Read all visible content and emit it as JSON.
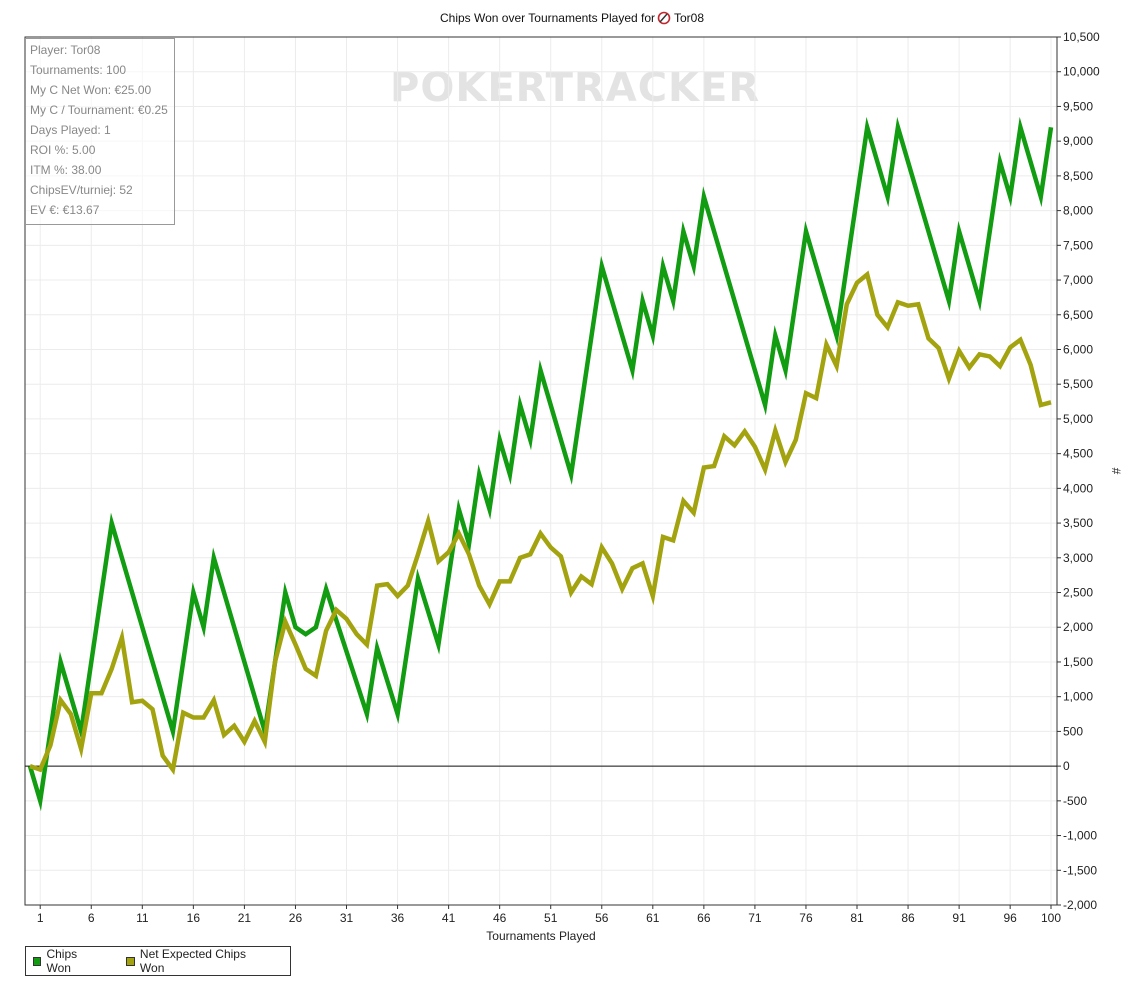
{
  "chart_data": {
    "type": "line",
    "title": "Chips Won over Tournaments Played for",
    "player_name": "Tor08",
    "watermark": "POKERTRACKER",
    "xlabel": "Tournaments Played",
    "ylabel": "#",
    "xlim": [
      1,
      100
    ],
    "ylim": [
      -2000,
      10500
    ],
    "x_ticks": [
      1,
      6,
      11,
      16,
      21,
      26,
      31,
      36,
      41,
      46,
      51,
      56,
      61,
      66,
      71,
      76,
      81,
      86,
      91,
      96,
      100
    ],
    "y_ticks": [
      {
        "value": 10500,
        "label": "10,500"
      },
      {
        "value": 10000,
        "label": "10,000"
      },
      {
        "value": 9500,
        "label": "9,500"
      },
      {
        "value": 9000,
        "label": "9,000"
      },
      {
        "value": 8500,
        "label": "8,500"
      },
      {
        "value": 8000,
        "label": "8,000"
      },
      {
        "value": 7500,
        "label": "7,500"
      },
      {
        "value": 7000,
        "label": "7,000"
      },
      {
        "value": 6500,
        "label": "6,500"
      },
      {
        "value": 6000,
        "label": "6,000"
      },
      {
        "value": 5500,
        "label": "5,500"
      },
      {
        "value": 5000,
        "label": "5,000"
      },
      {
        "value": 4500,
        "label": "4,500"
      },
      {
        "value": 4000,
        "label": "4,000"
      },
      {
        "value": 3500,
        "label": "3,500"
      },
      {
        "value": 3000,
        "label": "3,000"
      },
      {
        "value": 2500,
        "label": "2,500"
      },
      {
        "value": 2000,
        "label": "2,000"
      },
      {
        "value": 1500,
        "label": "1,500"
      },
      {
        "value": 1000,
        "label": "1,000"
      },
      {
        "value": 500,
        "label": "500"
      },
      {
        "value": 0,
        "label": "0"
      },
      {
        "value": -500,
        "label": "-500"
      },
      {
        "value": -1000,
        "label": "-1,000"
      },
      {
        "value": -1500,
        "label": "-1,500"
      },
      {
        "value": -2000,
        "label": "-2,000"
      }
    ],
    "grid": true,
    "legend_position": "bottom-left",
    "series": [
      {
        "name": "Chips Won",
        "color": "#119c11",
        "points": [
          [
            0,
            0
          ],
          [
            1,
            -500
          ],
          [
            3,
            1500
          ],
          [
            5,
            500
          ],
          [
            8,
            3500
          ],
          [
            14,
            500
          ],
          [
            16,
            2500
          ],
          [
            17,
            2000
          ],
          [
            18,
            3000
          ],
          [
            23,
            500
          ],
          [
            25,
            2500
          ],
          [
            26,
            2000
          ],
          [
            27,
            1900
          ],
          [
            28,
            2000
          ],
          [
            29,
            2550
          ],
          [
            33,
            750
          ],
          [
            34,
            1700
          ],
          [
            36,
            750
          ],
          [
            38,
            2700
          ],
          [
            40,
            1750
          ],
          [
            42,
            3700
          ],
          [
            43,
            3200
          ],
          [
            44,
            4200
          ],
          [
            45,
            3700
          ],
          [
            46,
            4700
          ],
          [
            47,
            4200
          ],
          [
            48,
            5200
          ],
          [
            49,
            4700
          ],
          [
            50,
            5700
          ],
          [
            53,
            4200
          ],
          [
            56,
            7200
          ],
          [
            59,
            5700
          ],
          [
            60,
            6700
          ],
          [
            61,
            6200
          ],
          [
            62,
            7200
          ],
          [
            63,
            6700
          ],
          [
            64,
            7700
          ],
          [
            65,
            7200
          ],
          [
            66,
            8200
          ],
          [
            72,
            5200
          ],
          [
            73,
            6200
          ],
          [
            74,
            5700
          ],
          [
            76,
            7700
          ],
          [
            79,
            6200
          ],
          [
            82,
            9200
          ],
          [
            84,
            8200
          ],
          [
            85,
            9200
          ],
          [
            90,
            6700
          ],
          [
            91,
            7700
          ],
          [
            93,
            6700
          ],
          [
            95,
            8700
          ],
          [
            96,
            8200
          ],
          [
            97,
            9200
          ],
          [
            99,
            8200
          ],
          [
            100,
            9200
          ]
        ]
      },
      {
        "name": "Net Expected Chips Won",
        "color": "#a3a30f",
        "points": [
          [
            0,
            0
          ],
          [
            1,
            -50
          ],
          [
            2,
            300
          ],
          [
            3,
            950
          ],
          [
            4,
            750
          ],
          [
            5,
            250
          ],
          [
            6,
            1050
          ],
          [
            7,
            1050
          ],
          [
            8,
            1400
          ],
          [
            9,
            1850
          ],
          [
            10,
            920
          ],
          [
            11,
            940
          ],
          [
            12,
            820
          ],
          [
            13,
            150
          ],
          [
            14,
            -50
          ],
          [
            15,
            770
          ],
          [
            16,
            700
          ],
          [
            17,
            700
          ],
          [
            18,
            950
          ],
          [
            19,
            450
          ],
          [
            20,
            580
          ],
          [
            21,
            350
          ],
          [
            22,
            650
          ],
          [
            23,
            350
          ],
          [
            24,
            1500
          ],
          [
            25,
            2080
          ],
          [
            26,
            1750
          ],
          [
            27,
            1400
          ],
          [
            28,
            1300
          ],
          [
            29,
            1950
          ],
          [
            30,
            2250
          ],
          [
            31,
            2120
          ],
          [
            32,
            1900
          ],
          [
            33,
            1750
          ],
          [
            34,
            2600
          ],
          [
            35,
            2620
          ],
          [
            36,
            2450
          ],
          [
            37,
            2600
          ],
          [
            38,
            3050
          ],
          [
            39,
            3530
          ],
          [
            40,
            2950
          ],
          [
            41,
            3080
          ],
          [
            42,
            3350
          ],
          [
            43,
            3050
          ],
          [
            44,
            2600
          ],
          [
            45,
            2330
          ],
          [
            46,
            2660
          ],
          [
            47,
            2660
          ],
          [
            48,
            3000
          ],
          [
            49,
            3050
          ],
          [
            50,
            3350
          ],
          [
            51,
            3150
          ],
          [
            52,
            3020
          ],
          [
            53,
            2500
          ],
          [
            54,
            2730
          ],
          [
            55,
            2620
          ],
          [
            56,
            3150
          ],
          [
            57,
            2920
          ],
          [
            58,
            2550
          ],
          [
            59,
            2850
          ],
          [
            60,
            2920
          ],
          [
            61,
            2450
          ],
          [
            62,
            3300
          ],
          [
            63,
            3250
          ],
          [
            64,
            3820
          ],
          [
            65,
            3650
          ],
          [
            66,
            4300
          ],
          [
            67,
            4320
          ],
          [
            68,
            4750
          ],
          [
            69,
            4620
          ],
          [
            70,
            4820
          ],
          [
            71,
            4600
          ],
          [
            72,
            4270
          ],
          [
            73,
            4830
          ],
          [
            74,
            4380
          ],
          [
            75,
            4700
          ],
          [
            76,
            5370
          ],
          [
            77,
            5300
          ],
          [
            78,
            6070
          ],
          [
            79,
            5760
          ],
          [
            80,
            6650
          ],
          [
            81,
            6960
          ],
          [
            82,
            7080
          ],
          [
            83,
            6500
          ],
          [
            84,
            6320
          ],
          [
            85,
            6680
          ],
          [
            86,
            6630
          ],
          [
            87,
            6650
          ],
          [
            88,
            6160
          ],
          [
            89,
            6020
          ],
          [
            90,
            5580
          ],
          [
            91,
            5980
          ],
          [
            92,
            5740
          ],
          [
            93,
            5930
          ],
          [
            94,
            5900
          ],
          [
            95,
            5760
          ],
          [
            96,
            6030
          ],
          [
            97,
            6140
          ],
          [
            98,
            5780
          ],
          [
            99,
            5200
          ],
          [
            100,
            5240
          ]
        ]
      }
    ]
  },
  "stats": [
    {
      "label": "Player: Tor08"
    },
    {
      "label": "Tournaments: 100"
    },
    {
      "label": "My C Net Won: €25.00"
    },
    {
      "label": "My C / Tournament: €0.25"
    },
    {
      "label": "Days Played: 1"
    },
    {
      "label": "ROI %: 5.00"
    },
    {
      "label": "ITM %: 38.00"
    },
    {
      "label": "ChipsEV/turniej: 52"
    },
    {
      "label": "EV €: €13.67"
    }
  ],
  "legend": [
    {
      "label": "Chips Won",
      "color": "#119c11"
    },
    {
      "label": "Net Expected Chips Won",
      "color": "#a3a30f"
    }
  ]
}
